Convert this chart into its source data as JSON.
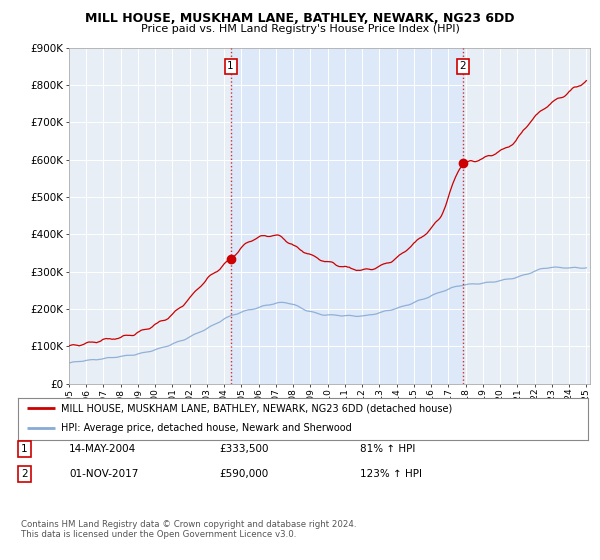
{
  "title": "MILL HOUSE, MUSKHAM LANE, BATHLEY, NEWARK, NG23 6DD",
  "subtitle": "Price paid vs. HM Land Registry's House Price Index (HPI)",
  "ylim": [
    0,
    900000
  ],
  "yticks": [
    0,
    100000,
    200000,
    300000,
    400000,
    500000,
    600000,
    700000,
    800000,
    900000
  ],
  "ytick_labels": [
    "£0",
    "£100K",
    "£200K",
    "£300K",
    "£400K",
    "£500K",
    "£600K",
    "£700K",
    "£800K",
    "£900K"
  ],
  "sale1_year": 2004.37,
  "sale1_price": 333500,
  "sale2_year": 2017.83,
  "sale2_price": 590000,
  "legend_house": "MILL HOUSE, MUSKHAM LANE, BATHLEY, NEWARK, NG23 6DD (detached house)",
  "legend_hpi": "HPI: Average price, detached house, Newark and Sherwood",
  "table_row1": [
    "1",
    "14-MAY-2004",
    "£333,500",
    "81% ↑ HPI"
  ],
  "table_row2": [
    "2",
    "01-NOV-2017",
    "£590,000",
    "123% ↑ HPI"
  ],
  "footnote": "Contains HM Land Registry data © Crown copyright and database right 2024.\nThis data is licensed under the Open Government Licence v3.0.",
  "house_color": "#cc0000",
  "hpi_color": "#88aad4",
  "vline_color": "#cc0000",
  "background_color": "#ffffff",
  "plot_bg_color": "#dde8f5",
  "plot_bg_left": "#e8eef5",
  "shade_color": "#dde8f8"
}
